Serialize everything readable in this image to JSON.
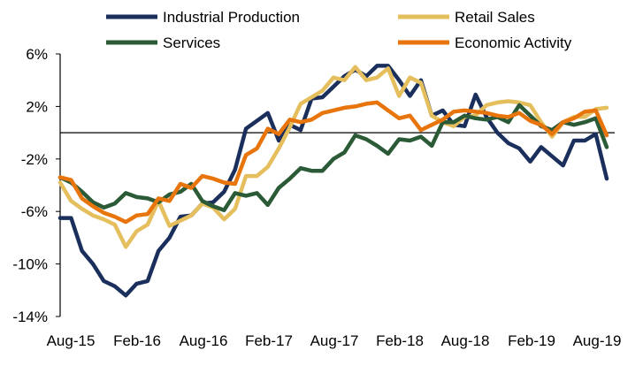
{
  "chart_data": {
    "type": "line",
    "title": "",
    "xlabel": "",
    "ylabel": "",
    "ylim": [
      -14,
      6
    ],
    "yticks": [
      "6%",
      "2%",
      "-2%",
      "-6%",
      "-10%",
      "-14%"
    ],
    "ytick_values": [
      6,
      2,
      -2,
      -6,
      -10,
      -14
    ],
    "xticks": [
      "Aug-15",
      "Feb-16",
      "Aug-16",
      "Feb-17",
      "Aug-17",
      "Feb-18",
      "Aug-18",
      "Feb-19",
      "Aug-19"
    ],
    "x_start": "Aug-15",
    "x_end": "Aug-19",
    "reference_line": 0,
    "grid": false,
    "legend_position": "top",
    "series": [
      {
        "name": "Industrial Production",
        "color": "#1b2f5c",
        "values": [
          -6.5,
          -6.5,
          -9,
          -10,
          -11.3,
          -11.7,
          -12.4,
          -11.5,
          -11.3,
          -9,
          -8,
          -6.4,
          -6.3,
          -5.4,
          -5.3,
          -4.5,
          -2.8,
          0.3,
          0.9,
          1.5,
          -0.6,
          0.6,
          0.2,
          2.6,
          2.7,
          3.5,
          4.3,
          4.8,
          4.3,
          5.1,
          5.1,
          4,
          2.8,
          4,
          1.3,
          1.7,
          0.6,
          0.5,
          2.9,
          1.2,
          0,
          -0.8,
          -1.2,
          -2.2,
          -1.1,
          -1.8,
          -2.5,
          -0.6,
          -0.6,
          -0.1,
          -3.5
        ]
      },
      {
        "name": "Retail Sales",
        "color": "#e5bf5d",
        "values": [
          -3.8,
          -5.2,
          -5.8,
          -6.3,
          -6.6,
          -7,
          -8.7,
          -7.5,
          -7,
          -5.2,
          -7.1,
          -6.7,
          -6.3,
          -5.4,
          -5.7,
          -6.6,
          -5.8,
          -3.3,
          -3.3,
          -2.6,
          -1.2,
          0.4,
          2.2,
          2.7,
          3.2,
          4.2,
          4,
          5,
          4,
          4.2,
          4.9,
          2.8,
          4.2,
          3.8,
          1.3,
          0.8,
          0.5,
          1.2,
          1.3,
          2.1,
          2.3,
          2.4,
          2.3,
          2.1,
          0.8,
          -0.3,
          0.8,
          1.2,
          1.2,
          1.8,
          1.9
        ]
      },
      {
        "name": "Services",
        "color": "#2a5a36",
        "values": [
          -3.4,
          -3.8,
          -4.5,
          -5.3,
          -5.7,
          -5.4,
          -4.6,
          -4.9,
          -5,
          -5.3,
          -4.7,
          -4.5,
          -3.9,
          -5.2,
          -5.6,
          -5.9,
          -4.6,
          -4.8,
          -4.6,
          -5.5,
          -4.2,
          -3.5,
          -2.7,
          -2.9,
          -2.9,
          -2,
          -1.5,
          -0.2,
          -0.5,
          -1,
          -1.6,
          -0.5,
          -0.6,
          -0.3,
          -1,
          0.8,
          0.8,
          1.3,
          1.1,
          1,
          1.2,
          0.8,
          2.1,
          1.3,
          0.5,
          0.2,
          0.8,
          0.6,
          0.8,
          1.1,
          -1.1
        ]
      },
      {
        "name": "Economic Activity",
        "color": "#e8740c",
        "values": [
          -3.4,
          -3.6,
          -5,
          -5.6,
          -6.1,
          -6.4,
          -6.8,
          -6.3,
          -6.2,
          -5,
          -5.2,
          -3.9,
          -4.2,
          -3.3,
          -3.5,
          -3.8,
          -3.9,
          -1.7,
          -1.2,
          0.3,
          -0.1,
          1,
          0.8,
          1,
          1.5,
          1.7,
          1.9,
          2,
          2.2,
          2.3,
          1.7,
          1.1,
          1.3,
          0.2,
          0.6,
          1,
          1.6,
          1.7,
          1.6,
          1.5,
          1.3,
          1.2,
          1.5,
          0.9,
          0.6,
          -0.1,
          0.8,
          1.1,
          1.6,
          1.7,
          -0.2
        ]
      }
    ]
  }
}
